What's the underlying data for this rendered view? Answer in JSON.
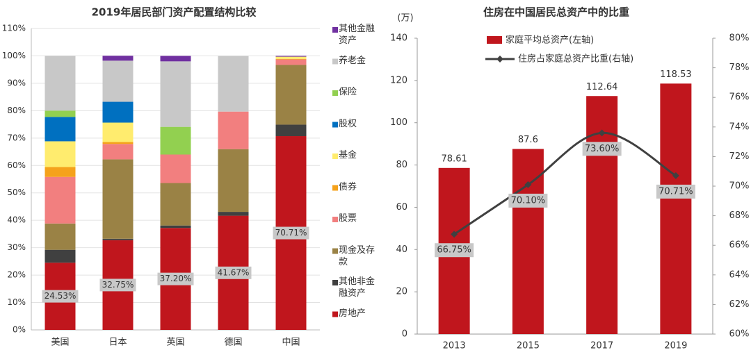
{
  "chart_data": [
    {
      "type": "bar",
      "stacked": true,
      "title": "2019年居民部门资产配置结构比较",
      "categories": [
        "美国",
        "日本",
        "英国",
        "德国",
        "中国"
      ],
      "ylim": [
        0,
        110
      ],
      "yticks": [
        {
          "value": 0,
          "label": "0%"
        },
        {
          "value": 10,
          "label": "10%"
        },
        {
          "value": 20,
          "label": "20%"
        },
        {
          "value": 30,
          "label": "30%"
        },
        {
          "value": 40,
          "label": "40%"
        },
        {
          "value": 50,
          "label": "50%"
        },
        {
          "value": 60,
          "label": "60%"
        },
        {
          "value": 70,
          "label": "70%"
        },
        {
          "value": 80,
          "label": "80%"
        },
        {
          "value": 90,
          "label": "90%"
        },
        {
          "value": 100,
          "label": "100%"
        },
        {
          "value": 110,
          "label": "110%"
        }
      ],
      "series": [
        {
          "name": "房地产",
          "color": "#c0161d",
          "values": [
            24.53,
            32.75,
            37.2,
            41.67,
            70.71
          ],
          "value_labels": [
            "24.53%",
            "32.75%",
            "37.20%",
            "41.67%",
            "70.71%"
          ]
        },
        {
          "name": "其他非金融资产",
          "color": "#404040",
          "values": [
            4.7,
            0.5,
            0.9,
            1.4,
            4.2
          ]
        },
        {
          "name": "现金及存款",
          "color": "#9a8245",
          "values": [
            9.6,
            29,
            15.5,
            22.9,
            21.8
          ]
        },
        {
          "name": "股票",
          "color": "#f27f7f",
          "values": [
            17,
            5.6,
            10.4,
            13.7,
            2
          ]
        },
        {
          "name": "债券",
          "color": "#f5a21b",
          "values": [
            3.6,
            0.7,
            0,
            0,
            0.2
          ]
        },
        {
          "name": "基金",
          "color": "#ffec6e",
          "values": [
            9.4,
            7.1,
            0,
            0,
            0.8
          ]
        },
        {
          "name": "股权",
          "color": "#0070c0",
          "values": [
            8.9,
            7.6,
            0,
            0,
            0
          ]
        },
        {
          "name": "保险",
          "color": "#92d050",
          "values": [
            2.3,
            0,
            10.1,
            0,
            0
          ]
        },
        {
          "name": "养老金",
          "color": "#c8c8c8",
          "values": [
            20,
            15,
            23.9,
            20.3,
            0
          ]
        },
        {
          "name": "其他金融资产",
          "color": "#7030a0",
          "values": [
            0,
            1.8,
            2,
            0,
            0.3
          ]
        }
      ]
    },
    {
      "type": "bar-line",
      "title": "住房在中国居民总资产中的比重",
      "y_unit": "(万)",
      "categories": [
        "2013",
        "2015",
        "2017",
        "2019"
      ],
      "ylim": [
        0,
        140
      ],
      "yticks": [
        0,
        20,
        40,
        60,
        80,
        100,
        120,
        140
      ],
      "y2lim": [
        60,
        80
      ],
      "y2ticks": [
        {
          "value": 60,
          "label": "60%"
        },
        {
          "value": 62,
          "label": "62%"
        },
        {
          "value": 64,
          "label": "64%"
        },
        {
          "value": 66,
          "label": "66%"
        },
        {
          "value": 68,
          "label": "68%"
        },
        {
          "value": 70,
          "label": "70%"
        },
        {
          "value": 72,
          "label": "72%"
        },
        {
          "value": 74,
          "label": "74%"
        },
        {
          "value": 76,
          "label": "76%"
        },
        {
          "value": 78,
          "label": "78%"
        },
        {
          "value": 80,
          "label": "80%"
        }
      ],
      "series": [
        {
          "name": "家庭平均总资产(左轴)",
          "type": "bar",
          "color": "#c0161d",
          "values": [
            78.61,
            87.6,
            112.64,
            118.53
          ]
        },
        {
          "name": "住房占家庭总资产比重(右轴)",
          "type": "line",
          "axis": "y2",
          "color": "#404040",
          "values": [
            66.75,
            70.1,
            73.6,
            70.71
          ],
          "value_labels": [
            "66.75%",
            "70.10%",
            "73.60%",
            "70.71%"
          ]
        }
      ]
    }
  ]
}
